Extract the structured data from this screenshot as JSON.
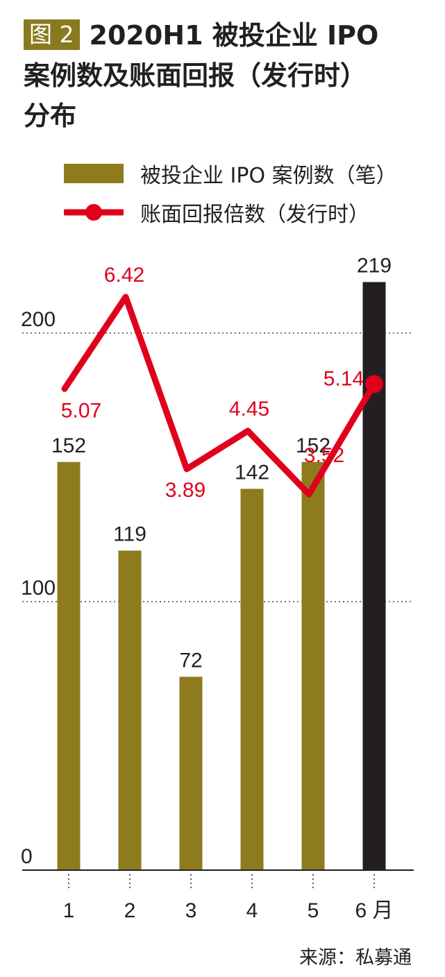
{
  "title": {
    "badge": "图 2",
    "line1": "2020H1 被投企业 IPO",
    "line2": "案例数及账面回报（发行时）",
    "line3": "分布"
  },
  "legend": {
    "bar_label": "被投企业 IPO 案例数（笔）",
    "line_label": "账面回报倍数（发行时）"
  },
  "source": "来源：私募通",
  "colors": {
    "bar": "#8d7b1e",
    "bar_highlight": "#231f20",
    "line": "#e0001b",
    "axis": "#231f20"
  },
  "chart_data": {
    "type": "bar",
    "categories": [
      "1",
      "2",
      "3",
      "4",
      "5",
      "6 月"
    ],
    "ylim": [
      0,
      220
    ],
    "yticks": [
      "0",
      "100",
      "200"
    ],
    "grid": "dotted",
    "series": [
      {
        "name": "被投企业 IPO 案例数（笔）",
        "type": "bar",
        "values": [
          152,
          119,
          72,
          142,
          152,
          219
        ],
        "labels": [
          "152",
          "119",
          "72",
          "142",
          "152",
          "219"
        ]
      },
      {
        "name": "账面回报倍数（发行时）",
        "type": "line",
        "values": [
          5.07,
          6.42,
          3.89,
          4.45,
          3.52,
          5.14
        ],
        "labels": [
          "5.07",
          "6.42",
          "3.89",
          "4.45",
          "3.52",
          "5.14"
        ]
      }
    ]
  }
}
